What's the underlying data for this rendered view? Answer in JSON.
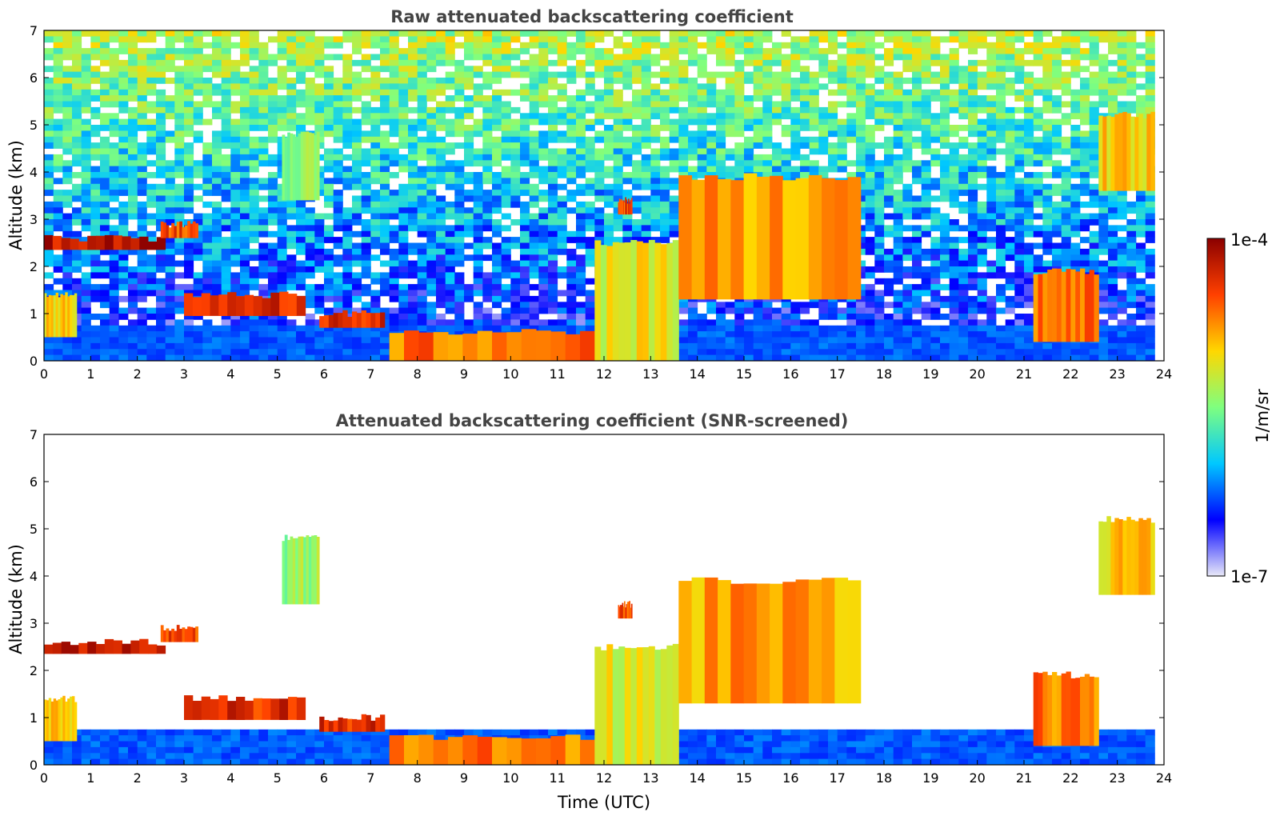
{
  "chart_data": [
    {
      "type": "heatmap",
      "title": "Raw attenuated backscattering coefficient",
      "xlabel": "",
      "ylabel": "Altitude (km)",
      "xlim": [
        0,
        24
      ],
      "ylim": [
        0,
        7
      ],
      "xticks": [
        "0",
        "1",
        "2",
        "3",
        "4",
        "5",
        "6",
        "7",
        "8",
        "9",
        "10",
        "11",
        "12",
        "13",
        "14",
        "15",
        "16",
        "17",
        "18",
        "19",
        "20",
        "21",
        "22",
        "23",
        "24"
      ],
      "yticks": [
        "0",
        "1",
        "2",
        "3",
        "4",
        "5",
        "6",
        "7"
      ],
      "screened": false,
      "features": [
        {
          "t0": 0.0,
          "t1": 2.6,
          "z0": 2.35,
          "z1": 2.6,
          "level": 1.0
        },
        {
          "t0": 2.5,
          "t1": 3.3,
          "z0": 2.6,
          "z1": 2.9,
          "level": 0.9
        },
        {
          "t0": 3.0,
          "t1": 5.6,
          "z0": 0.95,
          "z1": 1.4,
          "level": 0.95
        },
        {
          "t0": 5.9,
          "t1": 7.3,
          "z0": 0.7,
          "z1": 1.0,
          "level": 0.95
        },
        {
          "t0": 0.0,
          "t1": 0.7,
          "z0": 0.5,
          "z1": 1.4,
          "level": 0.75
        },
        {
          "t0": 7.4,
          "t1": 11.8,
          "z0": 0.0,
          "z1": 0.6,
          "level": 0.85
        },
        {
          "t0": 11.8,
          "t1": 13.6,
          "z0": 0.0,
          "z1": 2.5,
          "level": 0.7
        },
        {
          "t0": 13.6,
          "t1": 17.5,
          "z0": 1.3,
          "z1": 3.9,
          "level": 0.8
        },
        {
          "t0": 21.2,
          "t1": 22.6,
          "z0": 0.4,
          "z1": 1.9,
          "level": 0.85
        },
        {
          "t0": 22.6,
          "t1": 23.8,
          "z0": 3.6,
          "z1": 5.2,
          "level": 0.75
        },
        {
          "t0": 5.1,
          "t1": 5.9,
          "z0": 3.4,
          "z1": 4.8,
          "level": 0.6
        },
        {
          "t0": 12.3,
          "t1": 12.6,
          "z0": 3.1,
          "z1": 3.4,
          "level": 0.9
        }
      ]
    },
    {
      "type": "heatmap",
      "title": "Attenuated backscattering coefficient (SNR-screened)",
      "xlabel": "Time (UTC)",
      "ylabel": "Altitude (km)",
      "xlim": [
        0,
        24
      ],
      "ylim": [
        0,
        7
      ],
      "xticks": [
        "0",
        "1",
        "2",
        "3",
        "4",
        "5",
        "6",
        "7",
        "8",
        "9",
        "10",
        "11",
        "12",
        "13",
        "14",
        "15",
        "16",
        "17",
        "18",
        "19",
        "20",
        "21",
        "22",
        "23",
        "24"
      ],
      "yticks": [
        "0",
        "1",
        "2",
        "3",
        "4",
        "5",
        "6",
        "7"
      ],
      "screened": true,
      "features": [
        {
          "t0": 0.0,
          "t1": 2.6,
          "z0": 2.35,
          "z1": 2.6,
          "level": 1.0
        },
        {
          "t0": 2.5,
          "t1": 3.3,
          "z0": 2.6,
          "z1": 2.9,
          "level": 0.9
        },
        {
          "t0": 3.0,
          "t1": 5.6,
          "z0": 0.95,
          "z1": 1.4,
          "level": 0.95
        },
        {
          "t0": 5.9,
          "t1": 7.3,
          "z0": 0.7,
          "z1": 1.0,
          "level": 0.95
        },
        {
          "t0": 0.0,
          "t1": 0.7,
          "z0": 0.5,
          "z1": 1.4,
          "level": 0.75
        },
        {
          "t0": 7.4,
          "t1": 11.8,
          "z0": 0.0,
          "z1": 0.6,
          "level": 0.85
        },
        {
          "t0": 11.8,
          "t1": 13.6,
          "z0": 0.0,
          "z1": 2.5,
          "level": 0.7
        },
        {
          "t0": 13.6,
          "t1": 17.5,
          "z0": 1.3,
          "z1": 3.9,
          "level": 0.8
        },
        {
          "t0": 21.2,
          "t1": 22.6,
          "z0": 0.4,
          "z1": 1.9,
          "level": 0.85
        },
        {
          "t0": 22.6,
          "t1": 23.8,
          "z0": 3.6,
          "z1": 5.2,
          "level": 0.75
        },
        {
          "t0": 5.1,
          "t1": 5.9,
          "z0": 3.4,
          "z1": 4.8,
          "level": 0.6
        },
        {
          "t0": 12.3,
          "t1": 12.6,
          "z0": 3.1,
          "z1": 3.4,
          "level": 0.9
        }
      ]
    }
  ],
  "colorbar": {
    "label": "1/m/sr",
    "max_label": "1e-4",
    "min_label": "1e-7",
    "colormap": "jet",
    "colors": [
      "#e8e8f8",
      "#0000ff",
      "#00c8ff",
      "#7fff7f",
      "#ffd700",
      "#ff4000",
      "#8b0000"
    ]
  }
}
